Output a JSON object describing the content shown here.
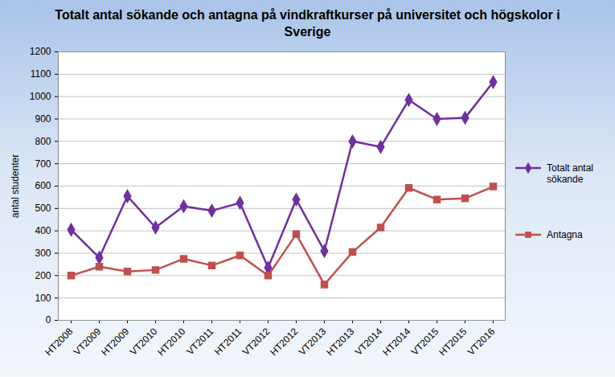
{
  "chart_data": {
    "type": "line",
    "title": "Totalt antal sökande och antagna på vindkraftkurser på universitet och högskolor i Sverige",
    "ylabel": "antal studenter",
    "categories": [
      "HT2008",
      "VT2009",
      "HT2009",
      "VT2010",
      "HT2010",
      "VT2011",
      "HT2011",
      "VT2012",
      "HT2012",
      "VT2013",
      "HT2013",
      "VT2014",
      "HT2014",
      "VT2015",
      "HT2015",
      "VT2016"
    ],
    "series": [
      {
        "name": "Totalt antal sökande",
        "color": "#7030a0",
        "marker": "diamond",
        "values": [
          405,
          280,
          555,
          415,
          510,
          490,
          525,
          235,
          540,
          310,
          800,
          775,
          985,
          900,
          905,
          1065
        ]
      },
      {
        "name": "Antagna",
        "color": "#c0504d",
        "marker": "square",
        "values": [
          200,
          240,
          218,
          225,
          275,
          245,
          290,
          200,
          385,
          160,
          305,
          415,
          592,
          540,
          545,
          598
        ]
      }
    ],
    "ylim": [
      0,
      1200
    ],
    "yticks": [
      0,
      100,
      200,
      300,
      400,
      500,
      600,
      700,
      800,
      900,
      1000,
      1100,
      1200
    ],
    "grid": true,
    "legend": "right"
  }
}
